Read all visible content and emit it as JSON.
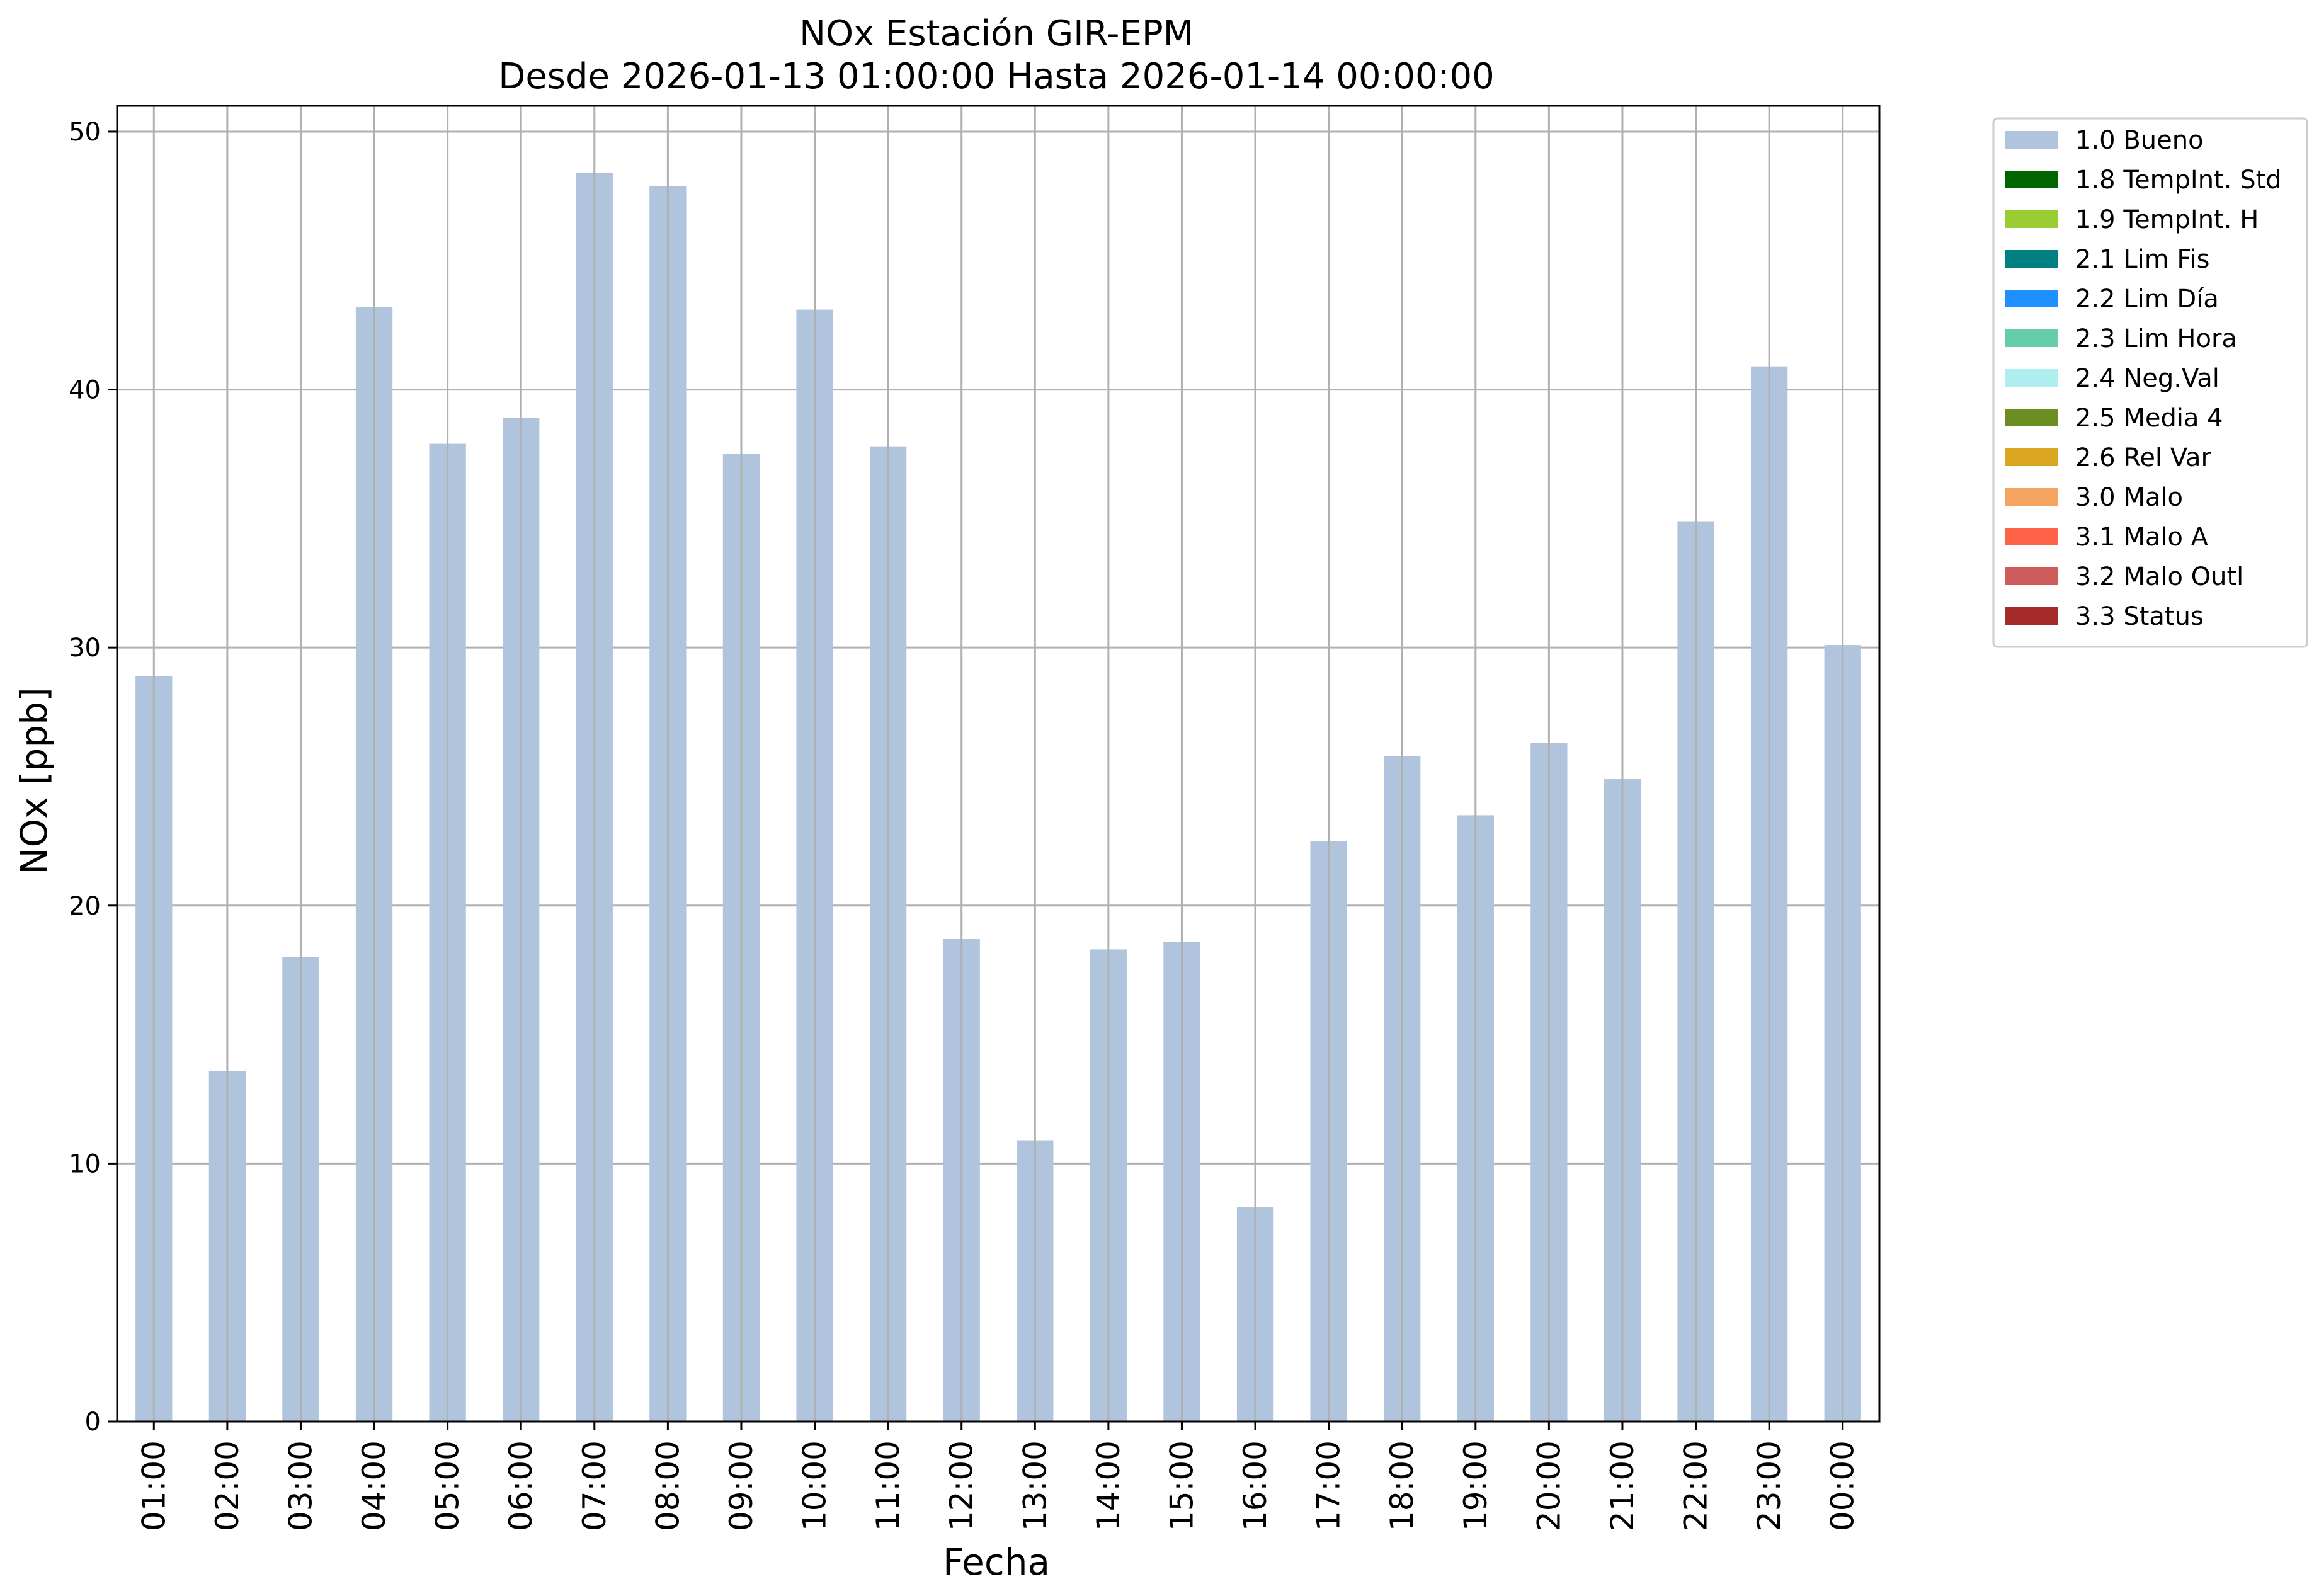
{
  "chart_data": {
    "type": "bar",
    "title": "NOx Estación GIR-EPM",
    "subtitle": "Desde 2026-01-13 01:00:00 Hasta 2026-01-14 00:00:00",
    "xlabel": "Fecha",
    "ylabel": "NOx [ppb]",
    "ylim": [
      0,
      51
    ],
    "yticks": [
      0,
      10,
      20,
      30,
      40,
      50
    ],
    "grid": true,
    "legend_position": "outside-top-right",
    "categories": [
      "01:00",
      "02:00",
      "03:00",
      "04:00",
      "05:00",
      "06:00",
      "07:00",
      "08:00",
      "09:00",
      "10:00",
      "11:00",
      "12:00",
      "13:00",
      "14:00",
      "15:00",
      "16:00",
      "17:00",
      "18:00",
      "19:00",
      "20:00",
      "21:00",
      "22:00",
      "23:00",
      "00:00"
    ],
    "series": [
      {
        "name": "1.0 Bueno",
        "color": "#b0c4de",
        "values": [
          28.9,
          13.6,
          18.0,
          43.2,
          37.9,
          38.9,
          48.4,
          47.9,
          37.5,
          43.1,
          37.8,
          18.7,
          10.9,
          18.3,
          18.6,
          8.3,
          22.5,
          25.8,
          23.5,
          26.3,
          24.9,
          34.9,
          40.9,
          30.1
        ]
      }
    ],
    "legend": [
      {
        "label": "1.0 Bueno",
        "color": "#b0c4de"
      },
      {
        "label": "1.8 TempInt. Std",
        "color": "#006400"
      },
      {
        "label": "1.9 TempInt. H",
        "color": "#9acd32"
      },
      {
        "label": "2.1 Lim Fis",
        "color": "#008080"
      },
      {
        "label": "2.2 Lim Día",
        "color": "#1e90ff"
      },
      {
        "label": "2.3 Lim Hora",
        "color": "#66cdaa"
      },
      {
        "label": "2.4 Neg.Val",
        "color": "#afeeee"
      },
      {
        "label": "2.5 Media 4",
        "color": "#6b8e23"
      },
      {
        "label": "2.6 Rel Var",
        "color": "#daa520"
      },
      {
        "label": "3.0 Malo",
        "color": "#f4a460"
      },
      {
        "label": "3.1 Malo A",
        "color": "#ff6347"
      },
      {
        "label": "3.2 Malo Outl",
        "color": "#cd5c5c"
      },
      {
        "label": "3.3 Status",
        "color": "#a52a2a"
      }
    ]
  }
}
